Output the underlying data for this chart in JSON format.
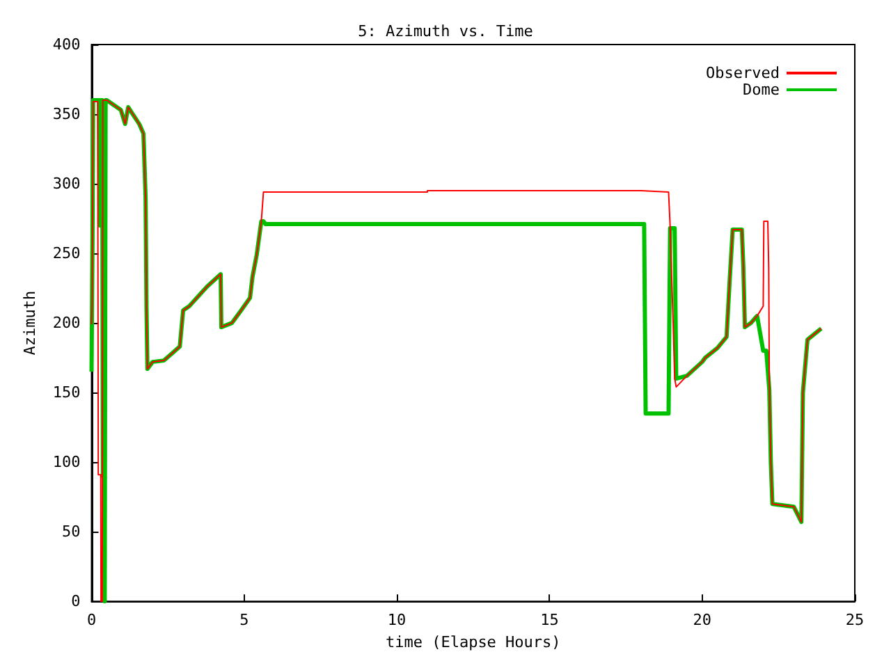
{
  "chart_data": {
    "type": "line",
    "title": "5: Azimuth vs. Time",
    "xlabel": "time (Elapse Hours)",
    "ylabel": "Azimuth",
    "xlim": [
      0,
      25
    ],
    "xticks": [
      0,
      5,
      10,
      15,
      20,
      25
    ],
    "ylim": [
      0,
      400
    ],
    "yticks": [
      0,
      50,
      100,
      150,
      200,
      250,
      300,
      350,
      400
    ],
    "grid": false,
    "legend": "top right",
    "marker": "none",
    "line_style": "solid",
    "series": [
      {
        "name": "Observed",
        "color": "#ff0000",
        "x": [
          0,
          0.02,
          0.05,
          0.2,
          0.22,
          0.3,
          0.31,
          0.35,
          0.37,
          0.5,
          0.96,
          1.1,
          1.2,
          1.35,
          1.56,
          1.7,
          1.77,
          1.8,
          1.83,
          2.0,
          2.37,
          2.89,
          3.0,
          3.2,
          3.78,
          4.23,
          4.25,
          4.6,
          4.9,
          5.19,
          5.27,
          5.41,
          5.56,
          5.63,
          11,
          11,
          18,
          18.9,
          18.95,
          19.05,
          19.1,
          19.15,
          19.5,
          20,
          20.1,
          20.5,
          20.8,
          20.9,
          21.0,
          21.3,
          21.35,
          21.4,
          21.6,
          21.8,
          22.0,
          22.02,
          22.15,
          22.18,
          22.2,
          22.25,
          22.3,
          23.0,
          23.25,
          23.3,
          23.45,
          23.9
        ],
        "values": [
          199,
          215,
          359,
          359,
          91,
          91,
          0,
          0,
          360,
          360,
          353,
          343,
          355,
          350,
          343,
          336,
          290,
          210,
          167,
          172,
          173,
          183,
          209,
          212,
          226,
          235,
          197,
          200,
          209,
          218,
          233,
          249,
          273,
          294,
          294,
          295,
          295,
          294,
          270,
          200,
          160,
          154,
          162,
          172,
          175,
          182,
          190,
          230,
          267,
          267,
          240,
          197,
          200,
          205,
          212,
          273,
          273,
          240,
          160,
          100,
          70,
          68,
          57,
          150,
          188,
          196
        ]
      },
      {
        "name": "Dome",
        "color": "#00c000",
        "x": [
          0,
          0.03,
          0.05,
          0.25,
          0.27,
          0.3,
          0.35,
          0.37,
          0.42,
          0.43,
          0.45,
          0.46,
          0.5,
          0.96,
          1.1,
          1.2,
          1.35,
          1.56,
          1.7,
          1.77,
          1.8,
          1.83,
          2.0,
          2.37,
          2.89,
          3.0,
          3.2,
          3.78,
          4.23,
          4.25,
          4.6,
          4.9,
          5.19,
          5.27,
          5.41,
          5.56,
          5.63,
          5.7,
          18.1,
          18.15,
          18.9,
          18.95,
          19.1,
          19.15,
          19.5,
          20,
          20.1,
          20.5,
          20.8,
          20.9,
          21.0,
          21.3,
          21.35,
          21.4,
          21.6,
          21.8,
          22.0,
          22.1,
          22.2,
          22.25,
          22.3,
          23.0,
          23.25,
          23.3,
          23.45,
          23.9
        ],
        "values": [
          165,
          260,
          360,
          360,
          270,
          360,
          360,
          90,
          90,
          0,
          0,
          360,
          360,
          353,
          343,
          355,
          350,
          343,
          336,
          290,
          210,
          167,
          172,
          173,
          183,
          209,
          212,
          226,
          235,
          197,
          200,
          209,
          218,
          233,
          249,
          273,
          273,
          271,
          271,
          135,
          135,
          268,
          268,
          160,
          162,
          172,
          175,
          182,
          190,
          230,
          267,
          267,
          240,
          197,
          200,
          205,
          180,
          180,
          152,
          100,
          70,
          68,
          57,
          150,
          188,
          196
        ]
      }
    ]
  }
}
